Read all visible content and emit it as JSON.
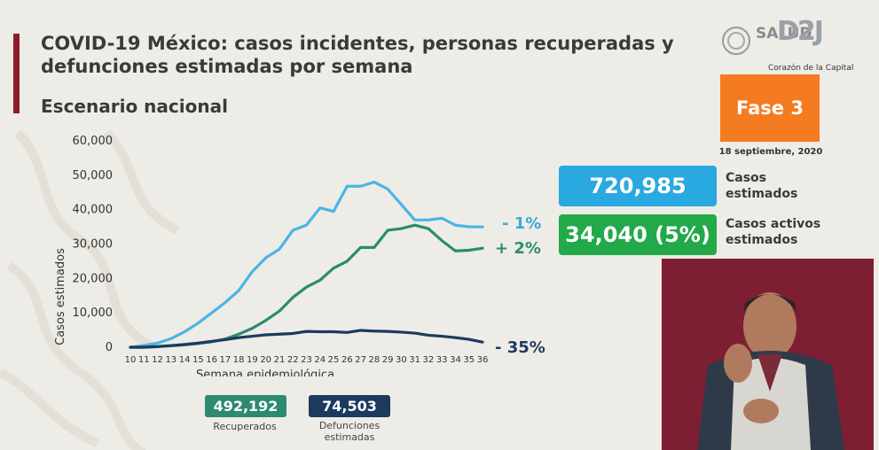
{
  "header": {
    "title": "COVID-19 México: casos incidentes, personas recuperadas y defunciones estimadas por semana",
    "subtitle": "Escenario nacional"
  },
  "branding": {
    "logo_text": "SALUD",
    "overlay_logo": "D2J",
    "overlay_tagline": "Corazón de la Capital",
    "accent_color": "#8c1c2b"
  },
  "phase": {
    "label": "Fase 3",
    "date": "18 septiembre, 2020",
    "color": "#f47b20"
  },
  "kpis": {
    "casos": {
      "value": "720,985",
      "label_line1": "Casos",
      "label_line2": "estimados",
      "color": "#2aa8e0"
    },
    "activos": {
      "value": "34,040 (5%)",
      "label_line1": "Casos activos",
      "label_line2": "estimados",
      "color": "#22a94a"
    }
  },
  "chart_data": {
    "type": "line",
    "xlabel": "Semana epidemiológica",
    "ylabel": "Casos estimados",
    "ylim": [
      0,
      60000
    ],
    "yticks": [
      0,
      10000,
      20000,
      30000,
      40000,
      50000,
      60000
    ],
    "ytick_labels": [
      "0",
      "10,000",
      "20,000",
      "30,000",
      "40,000",
      "50,000",
      "60,000"
    ],
    "x": [
      10,
      11,
      12,
      13,
      14,
      15,
      16,
      17,
      18,
      19,
      20,
      21,
      22,
      23,
      24,
      25,
      26,
      27,
      28,
      29,
      30,
      31,
      32,
      33,
      34,
      35,
      36
    ],
    "grid": false,
    "series": [
      {
        "color": "#4bb4e6",
        "change_label": "- 1%",
        "values": [
          0,
          500,
          1200,
          2500,
          4500,
          7000,
          10000,
          13000,
          16500,
          22000,
          26000,
          28500,
          34000,
          35500,
          40500,
          39500,
          46800,
          46800,
          48000,
          46000,
          41500,
          37000,
          37000,
          37500,
          35500,
          35000,
          35000
        ]
      },
      {
        "color": "#2a8c6e",
        "change_label": "+ 2%",
        "values": [
          0,
          0,
          200,
          400,
          700,
          1100,
          1600,
          2400,
          3800,
          5500,
          7800,
          10500,
          14500,
          17500,
          19500,
          23000,
          25000,
          29000,
          29000,
          34000,
          34500,
          35500,
          34500,
          31000,
          28000,
          28200,
          28800
        ]
      },
      {
        "color": "#1c3a5e",
        "change_label": "- 35%",
        "values": [
          0,
          0,
          200,
          500,
          800,
          1200,
          1700,
          2200,
          2800,
          3200,
          3600,
          3800,
          4000,
          4600,
          4500,
          4500,
          4300,
          4900,
          4700,
          4600,
          4400,
          4100,
          3500,
          3200,
          2800,
          2300,
          1500
        ]
      }
    ]
  },
  "summary": {
    "recuperados": {
      "value": "492,192",
      "label": "Recuperados",
      "color": "#2d8a70"
    },
    "defunciones": {
      "value": "74,503",
      "label_line1": "Defunciones",
      "label_line2": "estimadas",
      "color": "#1c3a5e"
    }
  }
}
